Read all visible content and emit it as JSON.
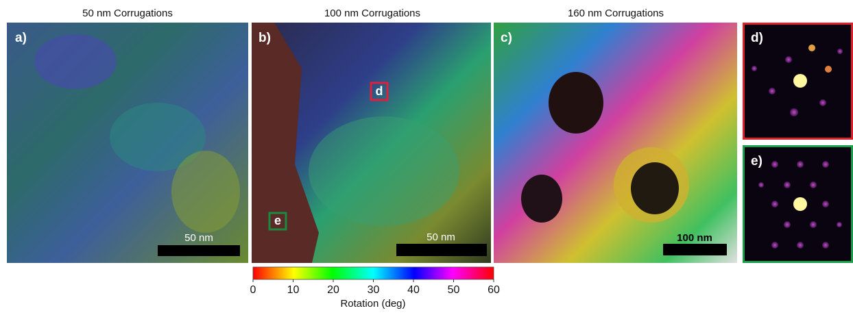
{
  "panels": [
    {
      "label": "a)",
      "title": "50 nm Corrugations",
      "scale_bar": "50 nm"
    },
    {
      "label": "b)",
      "title": "100 nm Corrugations",
      "scale_bar": "50 nm"
    },
    {
      "label": "c)",
      "title": "160 nm Corrugations",
      "scale_bar": "100 nm"
    },
    {
      "label": "d)"
    },
    {
      "label": "e)"
    }
  ],
  "markers": [
    "d",
    "e"
  ],
  "colorbar": {
    "label": "Rotation (deg)",
    "lim": [
      0,
      60
    ],
    "ticks": [
      0,
      10,
      20,
      30,
      40,
      50,
      60
    ]
  }
}
